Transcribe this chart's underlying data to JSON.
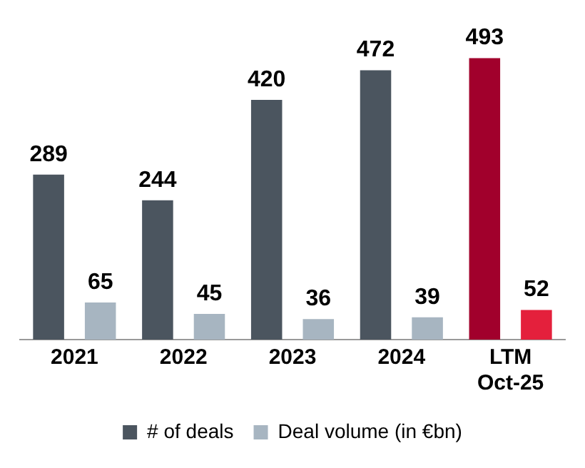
{
  "chart_data": {
    "type": "bar",
    "categories": [
      "2021",
      "2022",
      "2023",
      "2024",
      "LTM Oct-25"
    ],
    "series": [
      {
        "name": "# of deals",
        "color": "#4b555f",
        "colors": [
          "#4b555f",
          "#4b555f",
          "#4b555f",
          "#4b555f",
          "#a1002c"
        ],
        "values": [
          289,
          244,
          420,
          472,
          493
        ]
      },
      {
        "name": "Deal volume (in €bn)",
        "color": "#a7b5c1",
        "colors": [
          "#a7b5c1",
          "#a7b5c1",
          "#a7b5c1",
          "#a7b5c1",
          "#e4203c"
        ],
        "values": [
          65,
          45,
          36,
          39,
          52
        ]
      }
    ],
    "data_labels": true,
    "legend": "bottom",
    "grid": false
  }
}
